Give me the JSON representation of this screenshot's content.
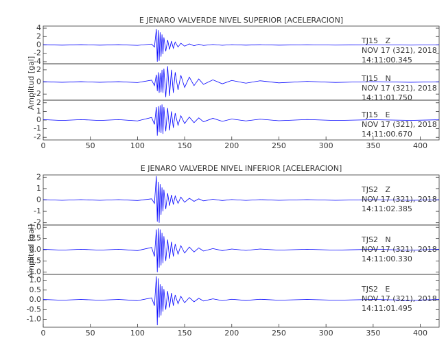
{
  "chart_data": [
    {
      "type": "line",
      "title": "E JENARO VALVERDE NIVEL SUPERIOR [ACELERACION]",
      "ylabel": "Amplitud [gal]",
      "color": "#0000ff",
      "xlim": [
        0,
        420
      ],
      "xticks": [
        0,
        50,
        100,
        150,
        200,
        250,
        300,
        350,
        400
      ],
      "x": [
        0,
        20,
        40,
        60,
        80,
        100,
        115,
        118,
        120,
        121,
        122,
        123,
        124,
        125,
        126,
        127,
        128,
        130,
        132,
        134,
        136,
        138,
        140,
        143,
        146,
        150,
        155,
        160,
        165,
        170,
        180,
        190,
        200,
        215,
        230,
        250,
        280,
        310,
        350,
        390,
        420
      ],
      "panels": [
        {
          "station": "TJ15   Z",
          "date": "NOV 17 (321), 2018",
          "time": "14:11:00.345",
          "ylim": [
            -4.5,
            4.5
          ],
          "yticks": [
            -4,
            -2,
            0,
            2,
            4
          ],
          "values": [
            0.05,
            -0.05,
            0.05,
            -0.05,
            0.05,
            -0.1,
            0.2,
            -0.5,
            3.8,
            -4,
            3.5,
            -3.8,
            3,
            -2.8,
            2.5,
            -2.2,
            1.8,
            -1.5,
            1.2,
            -1.1,
            0.9,
            -0.8,
            0.7,
            -0.5,
            0.4,
            -0.3,
            0.25,
            -0.2,
            0.15,
            -0.12,
            0.1,
            -0.08,
            0.06,
            -0.05,
            0.05,
            -0.05,
            0.04,
            -0.04,
            0.04,
            -0.04,
            0.03
          ]
        },
        {
          "station": "TJ15   N",
          "date": "NOV 17 (321), 2018",
          "time": "14:11:01.750",
          "ylim": [
            -3,
            3
          ],
          "yticks": [
            -2,
            0,
            2
          ],
          "values": [
            0.05,
            -0.05,
            0.05,
            -0.05,
            0.05,
            -0.1,
            0.3,
            -0.6,
            1.2,
            -1.5,
            1.6,
            -1.8,
            1.5,
            -1.7,
            2,
            -1.8,
            2.2,
            -2.5,
            2.6,
            -2.3,
            2,
            -1.8,
            1.6,
            -1.3,
            1.1,
            -0.9,
            0.8,
            -0.6,
            0.5,
            -0.4,
            0.35,
            -0.3,
            0.25,
            -0.2,
            0.2,
            -0.15,
            0.1,
            -0.08,
            0.06,
            -0.05,
            0.04
          ]
        },
        {
          "station": "TJ15   E",
          "date": "NOV 17 (321), 2018",
          "time": "14:11:00.670",
          "ylim": [
            -2.3,
            2.3
          ],
          "yticks": [
            -2,
            -1,
            0,
            1,
            2
          ],
          "values": [
            0.05,
            -0.05,
            0.05,
            -0.05,
            0.05,
            -0.1,
            0.3,
            -0.5,
            1.5,
            -1.8,
            1.6,
            -1.4,
            1.7,
            -1.5,
            1.8,
            -1.6,
            1.5,
            -1.3,
            1.4,
            -1.2,
            1,
            -0.9,
            0.8,
            -0.6,
            0.5,
            -0.4,
            0.35,
            -0.3,
            0.25,
            -0.2,
            0.2,
            -0.15,
            0.12,
            -0.1,
            0.1,
            -0.08,
            0.06,
            -0.05,
            0.04,
            -0.04,
            0.03
          ]
        }
      ]
    },
    {
      "type": "line",
      "title": "E JENARO VALVERDE NIVEL INFERIOR [ACELERACION]",
      "ylabel": "Amplitud [gal]",
      "color": "#0000ff",
      "xlim": [
        0,
        420
      ],
      "xticks": [
        0,
        50,
        100,
        150,
        200,
        250,
        300,
        350,
        400
      ],
      "x": [
        0,
        20,
        40,
        60,
        80,
        100,
        115,
        118,
        120,
        121,
        122,
        123,
        124,
        125,
        126,
        127,
        128,
        130,
        132,
        134,
        136,
        138,
        140,
        143,
        146,
        150,
        155,
        160,
        165,
        170,
        180,
        190,
        200,
        215,
        230,
        250,
        280,
        310,
        350,
        390,
        420
      ],
      "panels": [
        {
          "station": "TJS2   Z",
          "date": "NOV 17 (321), 2018",
          "time": "14:11:02.385",
          "ylim": [
            -2.2,
            2.2
          ],
          "yticks": [
            -2,
            -1,
            0,
            1,
            2
          ],
          "values": [
            0.03,
            -0.03,
            0.03,
            -0.03,
            0.03,
            -0.05,
            0.1,
            -0.3,
            2.1,
            -1.9,
            1.6,
            -2,
            1.4,
            -1.3,
            1.1,
            -1,
            0.9,
            -0.8,
            0.6,
            -0.5,
            0.45,
            -0.4,
            0.35,
            -0.3,
            0.25,
            -0.2,
            0.15,
            -0.12,
            0.1,
            -0.08,
            0.06,
            -0.05,
            0.04,
            -0.04,
            0.03,
            -0.03,
            0.03,
            -0.03,
            0.03,
            -0.03,
            0.02
          ]
        },
        {
          "station": "TJS2   N",
          "date": "NOV 17 (321), 2018",
          "time": "14:11:00.330",
          "ylim": [
            -1.1,
            1.1
          ],
          "yticks": [
            {
              "value": -1,
              "label": "-1.0"
            },
            -0.5,
            {
              "value": 0,
              "label": "0.0"
            },
            0.5,
            {
              "value": 1,
              "label": "1.0"
            }
          ],
          "values": [
            0.02,
            -0.02,
            0.02,
            -0.02,
            0.02,
            -0.04,
            0.1,
            -0.3,
            0.9,
            -1,
            0.95,
            -0.8,
            0.9,
            -0.7,
            0.75,
            -0.6,
            0.6,
            -0.5,
            0.45,
            -0.4,
            0.35,
            -0.3,
            0.25,
            -0.2,
            0.18,
            -0.15,
            0.12,
            -0.1,
            0.08,
            -0.06,
            0.05,
            -0.04,
            0.03,
            -0.03,
            0.03,
            -0.02,
            0.02,
            -0.02,
            0.02,
            -0.02,
            0.02
          ]
        },
        {
          "station": "TJS2   E",
          "date": "NOV 17 (321), 2018",
          "time": "14:11:01.495",
          "ylim": [
            -1.4,
            1.3
          ],
          "yticks": [
            {
              "value": -1,
              "label": "-1.0"
            },
            -0.5,
            {
              "value": 0,
              "label": "0.0"
            },
            0.5,
            {
              "value": 1,
              "label": "1.0"
            }
          ],
          "values": [
            0.02,
            -0.02,
            0.02,
            -0.02,
            0.02,
            -0.04,
            0.1,
            -0.3,
            1.2,
            -1.3,
            1.1,
            -0.9,
            0.8,
            -0.8,
            0.7,
            -0.6,
            0.55,
            -0.5,
            0.45,
            -0.4,
            0.35,
            -0.3,
            0.25,
            -0.2,
            0.18,
            -0.15,
            0.12,
            -0.1,
            0.08,
            -0.06,
            0.05,
            -0.04,
            0.03,
            -0.03,
            0.03,
            -0.02,
            0.02,
            -0.02,
            0.02,
            -0.02,
            0.02
          ]
        }
      ]
    }
  ]
}
